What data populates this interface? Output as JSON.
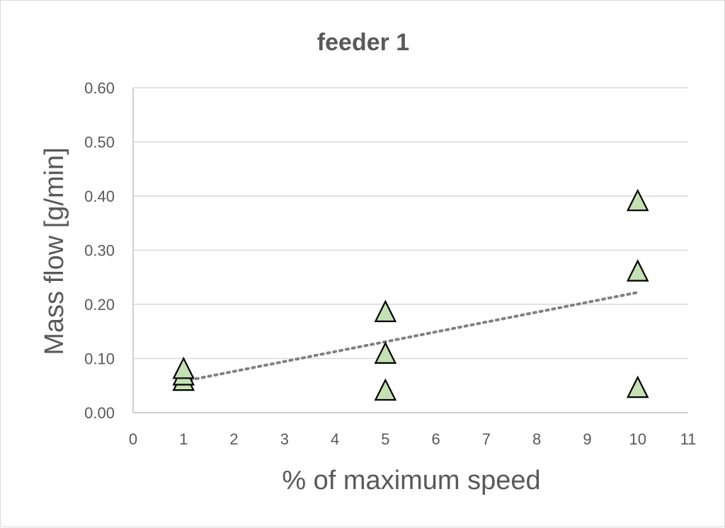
{
  "chart_data": {
    "type": "scatter",
    "title": "feeder 1",
    "xlabel": "% of maximum speed",
    "ylabel": "Mass flow [g/min]",
    "xlim": [
      0,
      11
    ],
    "ylim": [
      0,
      0.6
    ],
    "x_ticks": [
      "0",
      "1",
      "2",
      "3",
      "4",
      "5",
      "6",
      "7",
      "8",
      "9",
      "10",
      "11"
    ],
    "y_ticks": [
      "0.00",
      "0.10",
      "0.20",
      "0.30",
      "0.40",
      "0.50",
      "0.60"
    ],
    "grid": true,
    "legend": "none",
    "marker": "triangle",
    "marker_color": "#c5e0b4",
    "trendline": {
      "type": "linear",
      "style": "dotted",
      "color": "#808080",
      "from": [
        1,
        0.058
      ],
      "to": [
        10,
        0.222
      ]
    },
    "points": [
      {
        "x": 1,
        "y": 0.056
      },
      {
        "x": 1,
        "y": 0.066
      },
      {
        "x": 1,
        "y": 0.078
      },
      {
        "x": 5,
        "y": 0.038
      },
      {
        "x": 5,
        "y": 0.106
      },
      {
        "x": 5,
        "y": 0.183
      },
      {
        "x": 10,
        "y": 0.043
      },
      {
        "x": 10,
        "y": 0.258
      },
      {
        "x": 10,
        "y": 0.388
      }
    ]
  }
}
